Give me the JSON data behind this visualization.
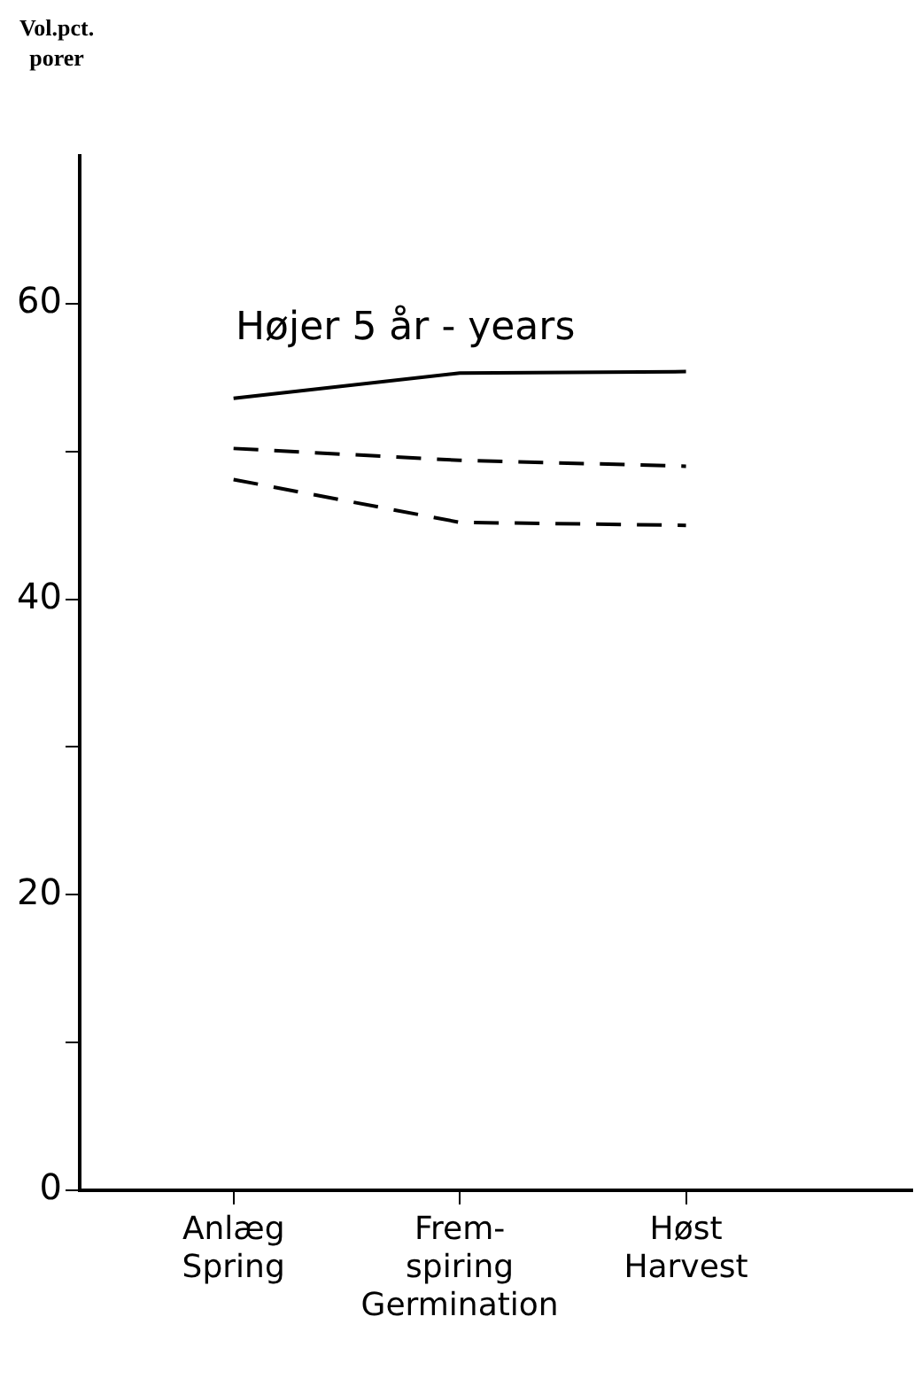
{
  "chart_data": {
    "type": "line",
    "ylabel": "Vol.pct.\nporer",
    "annotations": [
      "Højer 5 år - years"
    ],
    "categories": [
      "Anlæg\nSpring",
      "Frem-\nspiring\nGermination",
      "Høst\nHarvest"
    ],
    "series": [
      {
        "color": "#000000",
        "line_style": "solid",
        "values": [
          53.6,
          55.3,
          55.4
        ]
      },
      {
        "color": "#000000",
        "line_style": "dashed",
        "values": [
          50.2,
          49.4,
          49.0
        ]
      },
      {
        "color": "#000000",
        "line_style": "dashed",
        "values": [
          48.1,
          45.2,
          45.0
        ]
      }
    ],
    "ylim": [
      0,
      70
    ],
    "yticks": [
      0,
      {
        "value": 10,
        "label": null
      },
      20,
      {
        "value": 30,
        "label": null
      },
      40,
      {
        "value": 50,
        "label": null
      },
      60
    ],
    "grid": false,
    "legend": false,
    "marker": "none"
  }
}
